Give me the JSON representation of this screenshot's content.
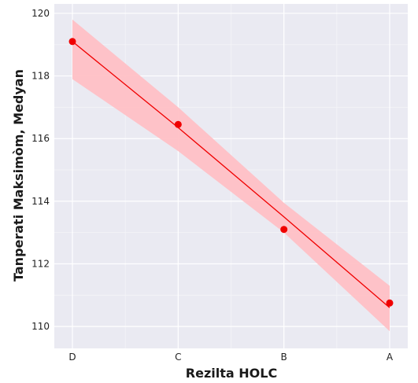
{
  "chart_data": {
    "type": "line",
    "xlabel": "Rezilta HOLC",
    "ylabel": "Tanperati Maksimòm, Medyan",
    "categories": [
      "D",
      "C",
      "B",
      "A"
    ],
    "series": [
      {
        "values": [
          119.1,
          116.45,
          113.1,
          110.75
        ],
        "regression_fit": [
          119.1,
          116.35,
          113.5,
          110.6
        ],
        "ci_lower": [
          117.9,
          115.6,
          113.0,
          109.85
        ],
        "ci_upper": [
          119.8,
          117.0,
          113.95,
          111.3
        ],
        "color": "#f00000",
        "band_color": "#ffc0c5"
      }
    ],
    "ylim": [
      109.3,
      120.3
    ],
    "y_ticks": [
      110,
      112,
      114,
      116,
      118,
      120
    ],
    "grid": true,
    "background": "#eaeaf2"
  }
}
